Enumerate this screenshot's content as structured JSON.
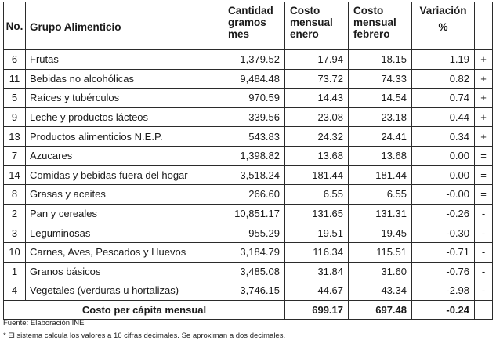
{
  "header": {
    "no": "No.",
    "grupo": "Grupo Alimenticio",
    "cantidad_l1": "Cantidad",
    "cantidad_l2": "gramos",
    "cantidad_l3": "mes",
    "enero_l1": "Costo",
    "enero_l2": "mensual",
    "enero_l3": "enero",
    "febrero_l1": "Costo",
    "febrero_l2": "mensual",
    "febrero_l3": "febrero",
    "variacion_l1": "Variación",
    "variacion_l2": "%"
  },
  "rows": [
    {
      "no": "6",
      "grupo": "Frutas",
      "cantidad": "1,379.52",
      "enero": "17.94",
      "febrero": "18.15",
      "variacion": "1.19",
      "signo": "+"
    },
    {
      "no": "11",
      "grupo": "Bebidas no alcohólicas",
      "cantidad": "9,484.48",
      "enero": "73.72",
      "febrero": "74.33",
      "variacion": "0.82",
      "signo": "+"
    },
    {
      "no": "5",
      "grupo": "Raíces y tubérculos",
      "cantidad": "970.59",
      "enero": "14.43",
      "febrero": "14.54",
      "variacion": "0.74",
      "signo": "+"
    },
    {
      "no": "9",
      "grupo": "Leche y productos lácteos",
      "cantidad": "339.56",
      "enero": "23.08",
      "febrero": "23.18",
      "variacion": "0.44",
      "signo": "+"
    },
    {
      "no": "13",
      "grupo": "Productos alimenticios N.E.P.",
      "cantidad": "543.83",
      "enero": "24.32",
      "febrero": "24.41",
      "variacion": "0.34",
      "signo": "+"
    },
    {
      "no": "7",
      "grupo": "Azucares",
      "cantidad": "1,398.82",
      "enero": "13.68",
      "febrero": "13.68",
      "variacion": "0.00",
      "signo": "="
    },
    {
      "no": "14",
      "grupo": "Comidas y bebidas fuera del hogar",
      "cantidad": "3,518.24",
      "enero": "181.44",
      "febrero": "181.44",
      "variacion": "0.00",
      "signo": "="
    },
    {
      "no": "8",
      "grupo": "Grasas y aceites",
      "cantidad": "266.60",
      "enero": "6.55",
      "febrero": "6.55",
      "variacion": "-0.00",
      "signo": "="
    },
    {
      "no": "2",
      "grupo": "Pan y cereales",
      "cantidad": "10,851.17",
      "enero": "131.65",
      "febrero": "131.31",
      "variacion": "-0.26",
      "signo": "-"
    },
    {
      "no": "3",
      "grupo": "Leguminosas",
      "cantidad": "955.29",
      "enero": "19.51",
      "febrero": "19.45",
      "variacion": "-0.30",
      "signo": "-"
    },
    {
      "no": "10",
      "grupo": "Carnes, Aves, Pescados y Huevos",
      "cantidad": "3,184.79",
      "enero": "116.34",
      "febrero": "115.51",
      "variacion": "-0.71",
      "signo": "-"
    },
    {
      "no": "1",
      "grupo": "Granos básicos",
      "cantidad": "3,485.08",
      "enero": "31.84",
      "febrero": "31.60",
      "variacion": "-0.76",
      "signo": "-"
    },
    {
      "no": "4",
      "grupo": "Vegetales (verduras u hortalizas)",
      "cantidad": "3,746.15",
      "enero": "44.67",
      "febrero": "43.34",
      "variacion": "-2.98",
      "signo": "-"
    }
  ],
  "total": {
    "label": "Costo per cápita mensual",
    "enero": "699.17",
    "febrero": "697.48",
    "variacion": "-0.24"
  },
  "notes": {
    "fuente": "Fuente: Elaboración INE",
    "nota": "* El sistema calcula los valores a 16 cifras decimales. Se aproximan a dos decimales."
  }
}
